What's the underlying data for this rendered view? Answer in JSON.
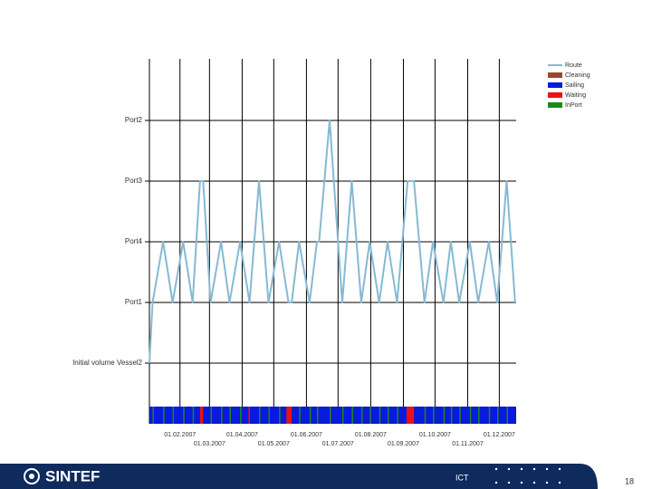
{
  "chart_data": {
    "type": "line",
    "y_categories": [
      "Initial volume Vessel2",
      "Port1",
      "Port4",
      "Port3",
      "Port2"
    ],
    "x": [
      "03.01.2007",
      "06.01.2007",
      "16.01.2007",
      "25.01.2007",
      "04.02.2007",
      "13.02.2007",
      "20.02.2007",
      "23.02.2007",
      "02.03.2007",
      "12.03.2007",
      "20.03.2007",
      "30.03.2007",
      "08.04.2007",
      "17.04.2007",
      "26.04.2007",
      "06.05.2007",
      "15.05.2007",
      "18.05.2007",
      "25.05.2007",
      "04.06.2007",
      "11.06.2007",
      "13.06.2007",
      "23.06.2007",
      "05.07.2007",
      "14.07.2007",
      "23.07.2007",
      "31.07.2007",
      "09.08.2007",
      "17.08.2007",
      "26.08.2007",
      "05.09.2007",
      "11.09.2007",
      "21.09.2007",
      "29.09.2007",
      "09.10.2007",
      "16.10.2007",
      "24.10.2007",
      "03.11.2007",
      "11.11.2007",
      "21.11.2007",
      "29.11.2007",
      "08.12.2007",
      "16.12.2007"
    ],
    "series": [
      {
        "name": "Route",
        "color": "#86b9d3",
        "values": [
          "Initial volume Vessel2",
          "Port1",
          "Port4",
          "Port1",
          "Port4",
          "Port1",
          "Port3",
          "Port3",
          "Port1",
          "Port4",
          "Port1",
          "Port4",
          "Port1",
          "Port3",
          "Port1",
          "Port4",
          "Port1",
          "Port1",
          "Port4",
          "Port1",
          "Port4",
          "Port4",
          "Port2",
          "Port1",
          "Port3",
          "Port1",
          "Port4",
          "Port1",
          "Port4",
          "Port1",
          "Port3",
          "Port3",
          "Port1",
          "Port4",
          "Port1",
          "Port4",
          "Port1",
          "Port4",
          "Port1",
          "Port4",
          "Port1",
          "Port3",
          "Port1"
        ]
      }
    ],
    "xlim": [
      "03.01.2007",
      "17.12.2007"
    ],
    "xticks": [
      "01.02.2007",
      "01.03.2007",
      "01.04.2007",
      "01.05.2007",
      "01.06.2007",
      "01.07.2007",
      "01.08.2007",
      "01.09.2007",
      "01.10.2007",
      "01.11.2007",
      "01.12.2007"
    ],
    "grid": true,
    "legend_position": "upper right",
    "status_legend": [
      {
        "name": "Cleaning",
        "color": "#a0462e"
      },
      {
        "name": "Sailing",
        "color": "#0a1adc"
      },
      {
        "name": "Waiting",
        "color": "#ee1111"
      },
      {
        "name": "InPort",
        "color": "#1a8a1a"
      }
    ],
    "status_segments": [
      {
        "status": "Sailing",
        "start": "03.01.2007",
        "end": "17.12.2007"
      },
      {
        "status": "InPort",
        "start": "06.01.2007",
        "end": "07.01.2007"
      },
      {
        "status": "InPort",
        "start": "16.01.2007",
        "end": "17.01.2007"
      },
      {
        "status": "InPort",
        "start": "25.01.2007",
        "end": "26.01.2007"
      },
      {
        "status": "InPort",
        "start": "04.02.2007",
        "end": "05.02.2007"
      },
      {
        "status": "InPort",
        "start": "13.02.2007",
        "end": "14.02.2007"
      },
      {
        "status": "Waiting",
        "start": "20.02.2007",
        "end": "23.02.2007"
      },
      {
        "status": "InPort",
        "start": "02.03.2007",
        "end": "03.03.2007"
      },
      {
        "status": "InPort",
        "start": "12.03.2007",
        "end": "13.03.2007"
      },
      {
        "status": "InPort",
        "start": "20.03.2007",
        "end": "21.03.2007"
      },
      {
        "status": "InPort",
        "start": "30.03.2007",
        "end": "31.03.2007"
      },
      {
        "status": "Waiting",
        "start": "07.04.2007",
        "end": "08.04.2007"
      },
      {
        "status": "InPort",
        "start": "17.04.2007",
        "end": "18.04.2007"
      },
      {
        "status": "InPort",
        "start": "26.04.2007",
        "end": "27.04.2007"
      },
      {
        "status": "InPort",
        "start": "06.05.2007",
        "end": "07.05.2007"
      },
      {
        "status": "Waiting",
        "start": "13.05.2007",
        "end": "18.05.2007"
      },
      {
        "status": "InPort",
        "start": "25.05.2007",
        "end": "26.05.2007"
      },
      {
        "status": "InPort",
        "start": "04.06.2007",
        "end": "05.06.2007"
      },
      {
        "status": "InPort",
        "start": "11.06.2007",
        "end": "12.06.2007"
      },
      {
        "status": "InPort",
        "start": "23.06.2007",
        "end": "24.06.2007"
      },
      {
        "status": "InPort",
        "start": "05.07.2007",
        "end": "06.07.2007"
      },
      {
        "status": "InPort",
        "start": "14.07.2007",
        "end": "15.07.2007"
      },
      {
        "status": "InPort",
        "start": "23.07.2007",
        "end": "24.07.2007"
      },
      {
        "status": "InPort",
        "start": "31.07.2007",
        "end": "01.08.2007"
      },
      {
        "status": "InPort",
        "start": "09.08.2007",
        "end": "10.08.2007"
      },
      {
        "status": "InPort",
        "start": "17.08.2007",
        "end": "18.08.2007"
      },
      {
        "status": "InPort",
        "start": "26.08.2007",
        "end": "27.08.2007"
      },
      {
        "status": "Waiting",
        "start": "04.09.2007",
        "end": "11.09.2007"
      },
      {
        "status": "InPort",
        "start": "21.09.2007",
        "end": "22.09.2007"
      },
      {
        "status": "InPort",
        "start": "29.09.2007",
        "end": "30.09.2007"
      },
      {
        "status": "InPort",
        "start": "09.10.2007",
        "end": "10.10.2007"
      },
      {
        "status": "InPort",
        "start": "16.10.2007",
        "end": "17.10.2007"
      },
      {
        "status": "InPort",
        "start": "24.10.2007",
        "end": "25.10.2007"
      },
      {
        "status": "InPort",
        "start": "03.11.2007",
        "end": "04.11.2007"
      },
      {
        "status": "InPort",
        "start": "11.11.2007",
        "end": "12.11.2007"
      },
      {
        "status": "InPort",
        "start": "21.11.2007",
        "end": "22.11.2007"
      },
      {
        "status": "InPort",
        "start": "29.11.2007",
        "end": "30.11.2007"
      },
      {
        "status": "InPort",
        "start": "08.12.2007",
        "end": "09.12.2007"
      }
    ]
  },
  "footer": {
    "logo": "SINTEF",
    "unit": "ICT",
    "page": "18"
  }
}
